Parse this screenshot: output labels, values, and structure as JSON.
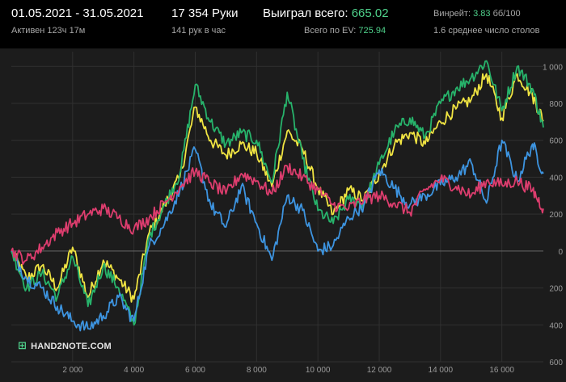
{
  "header": {
    "date_range": "01.05.2021 - 31.05.2021",
    "active": "Активен 123ч 17м",
    "hands": "17 354 Руки",
    "hands_per_hour": "141 рук в час",
    "won_label": "Выиграл всего:",
    "won_value": "665.02",
    "ev_label": "Всего по EV:",
    "ev_value": "725.94",
    "winrate_label": "Винрейт:",
    "winrate_value": "3.83",
    "winrate_unit": "бб/100",
    "avg_tables": "1.6 среднее число столов"
  },
  "logo_text": "HAND2NOTE.COM",
  "chart_data": {
    "type": "line",
    "xlim": [
      0,
      17354
    ],
    "ylim": [
      -600,
      1080
    ],
    "x_ticks": [
      2000,
      4000,
      6000,
      8000,
      10000,
      12000,
      14000,
      16000
    ],
    "x_tick_labels": [
      "2 000",
      "4 000",
      "6 000",
      "8 000",
      "10 000",
      "12 000",
      "14 000",
      "16 000"
    ],
    "y_ticks": [
      -600,
      -400,
      -200,
      0,
      200,
      400,
      600,
      800,
      1000
    ],
    "y_tick_labels": [
      "600",
      "400",
      "200",
      "0",
      "200",
      "400",
      "600",
      "800",
      "1 000"
    ],
    "grid": true,
    "series_x": [
      0,
      500,
      1000,
      1500,
      2000,
      2500,
      3000,
      3500,
      4000,
      4500,
      5000,
      5500,
      6000,
      6500,
      7000,
      7500,
      8000,
      8500,
      9000,
      9500,
      10000,
      10500,
      11000,
      11500,
      12000,
      12500,
      13000,
      13500,
      14000,
      14500,
      15000,
      15500,
      16000,
      16500,
      17000,
      17354
    ],
    "series": [
      {
        "color": "#f0e442",
        "values": [
          0,
          -150,
          -80,
          -200,
          20,
          -250,
          -50,
          -150,
          -260,
          100,
          250,
          400,
          780,
          600,
          520,
          580,
          530,
          350,
          650,
          550,
          340,
          200,
          330,
          280,
          420,
          580,
          640,
          580,
          700,
          770,
          820,
          960,
          720,
          960,
          840,
          710
        ]
      },
      {
        "color": "#27b36b",
        "values": [
          0,
          -200,
          -120,
          -250,
          -30,
          -300,
          -80,
          -200,
          -400,
          80,
          250,
          420,
          900,
          700,
          580,
          640,
          600,
          370,
          860,
          500,
          220,
          150,
          280,
          250,
          470,
          650,
          720,
          620,
          800,
          880,
          940,
          1030,
          760,
          1000,
          880,
          670
        ]
      },
      {
        "color": "#3d94e0",
        "values": [
          0,
          -150,
          -200,
          -300,
          -380,
          -420,
          -350,
          -250,
          -380,
          30,
          150,
          330,
          550,
          250,
          130,
          350,
          150,
          -50,
          300,
          220,
          0,
          30,
          180,
          250,
          440,
          340,
          250,
          300,
          360,
          400,
          480,
          260,
          600,
          380,
          580,
          420
        ]
      },
      {
        "color": "#dd3d6e",
        "values": [
          0,
          -50,
          20,
          100,
          150,
          200,
          230,
          180,
          120,
          180,
          260,
          350,
          430,
          370,
          310,
          420,
          380,
          310,
          460,
          400,
          330,
          250,
          230,
          280,
          300,
          260,
          210,
          330,
          390,
          350,
          300,
          380,
          360,
          380,
          330,
          230
        ]
      }
    ]
  }
}
